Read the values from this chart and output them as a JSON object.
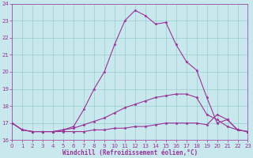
{
  "xlabel": "Windchill (Refroidissement éolien,°C)",
  "xlim": [
    0,
    23
  ],
  "ylim": [
    16,
    24
  ],
  "xtick_vals": [
    0,
    1,
    2,
    3,
    4,
    5,
    6,
    7,
    8,
    9,
    10,
    11,
    12,
    13,
    14,
    15,
    16,
    17,
    18,
    19,
    20,
    21,
    22,
    23
  ],
  "ytick_vals": [
    16,
    17,
    18,
    19,
    20,
    21,
    22,
    23,
    24
  ],
  "bg_color": "#c8e8ed",
  "grid_color": "#99cccc",
  "line_color": "#993399",
  "line1_x": [
    0,
    1,
    2,
    3,
    4,
    5,
    6,
    7,
    8,
    9,
    10,
    11,
    12,
    13,
    14,
    15,
    16,
    17,
    18,
    19,
    20,
    21,
    22,
    23
  ],
  "line1_y": [
    17.0,
    16.6,
    16.5,
    16.5,
    16.5,
    16.6,
    16.8,
    17.8,
    19.0,
    20.0,
    21.6,
    23.0,
    23.6,
    23.3,
    22.8,
    22.9,
    21.6,
    20.6,
    20.1,
    18.5,
    17.0,
    17.2,
    16.6,
    16.5
  ],
  "line2_x": [
    0,
    1,
    2,
    3,
    4,
    5,
    6,
    7,
    8,
    9,
    10,
    11,
    12,
    13,
    14,
    15,
    16,
    17,
    18,
    19,
    20,
    21,
    22,
    23
  ],
  "line2_y": [
    17.0,
    16.6,
    16.5,
    16.5,
    16.5,
    16.6,
    16.7,
    16.9,
    17.1,
    17.3,
    17.6,
    17.9,
    18.1,
    18.3,
    18.5,
    18.6,
    18.7,
    18.7,
    18.5,
    17.5,
    17.2,
    16.8,
    16.6,
    16.5
  ],
  "line3_x": [
    0,
    1,
    2,
    3,
    4,
    5,
    6,
    7,
    8,
    9,
    10,
    11,
    12,
    13,
    14,
    15,
    16,
    17,
    18,
    19,
    20,
    21,
    22,
    23
  ],
  "line3_y": [
    17.0,
    16.6,
    16.5,
    16.5,
    16.5,
    16.5,
    16.5,
    16.5,
    16.6,
    16.6,
    16.7,
    16.7,
    16.8,
    16.8,
    16.9,
    17.0,
    17.0,
    17.0,
    17.0,
    16.9,
    17.5,
    17.2,
    16.6,
    16.5
  ],
  "tick_fontsize": 5,
  "xlabel_fontsize": 5.5,
  "marker_size": 2.5,
  "line_width": 0.8
}
